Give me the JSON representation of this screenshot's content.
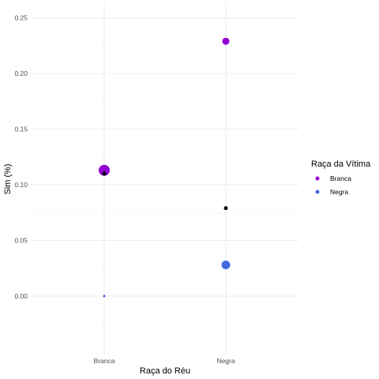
{
  "chart_data": {
    "type": "scatter",
    "xlabel": "Raça do Réu",
    "ylabel": "Sim (%)",
    "categories": [
      "Branca",
      "Negra"
    ],
    "ylim": [
      -0.0525,
      0.2625
    ],
    "y_ticks": [
      "0.00",
      "0.05",
      "0.10",
      "0.15",
      "0.20",
      "0.25"
    ],
    "y_tick_values": [
      0.0,
      0.05,
      0.1,
      0.15,
      0.2,
      0.25
    ],
    "grid": true,
    "legend": {
      "title": "Raça da Vítima",
      "placement": "right",
      "entries": [
        {
          "label": "Branca",
          "color": "#9400D3"
        },
        {
          "label": "Negra",
          "color": "#4169E1"
        }
      ]
    },
    "series": [
      {
        "name": "Branca",
        "color": "#9400D3",
        "points": [
          {
            "x": "Branca",
            "y": 0.113,
            "size": 7
          },
          {
            "x": "Negra",
            "y": 0.229,
            "size": 4.5
          }
        ]
      },
      {
        "name": "Negra",
        "color": "#4169E1",
        "points": [
          {
            "x": "Branca",
            "y": 0.0,
            "size": 1.5
          },
          {
            "x": "Negra",
            "y": 0.028,
            "size": 5.5
          }
        ]
      },
      {
        "color": "#000000",
        "points": [
          {
            "x": "Branca",
            "y": 0.11,
            "size": 2.5
          },
          {
            "x": "Negra",
            "y": 0.079,
            "size": 2.5
          }
        ]
      }
    ]
  }
}
